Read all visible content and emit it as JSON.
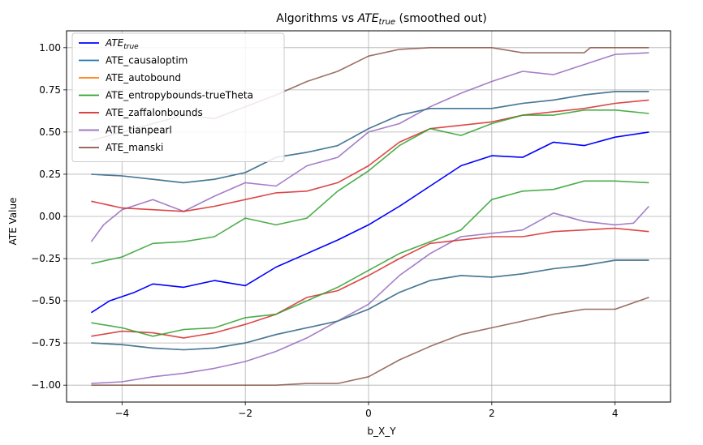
{
  "chart_data": {
    "type": "line",
    "title_main": "Algorithms vs ",
    "title_ate": "ATE",
    "title_sub": "true",
    "title_tail": " (smoothed out)",
    "xlabel": "b_X_Y",
    "ylabel": "ATE Value",
    "xlim": [
      -4.9,
      4.9
    ],
    "ylim": [
      -1.1,
      1.1
    ],
    "xticks": [
      -4,
      -2,
      0,
      2,
      4
    ],
    "xtick_labels": [
      "−4",
      "−2",
      "0",
      "2",
      "4"
    ],
    "yticks": [
      -1.0,
      -0.75,
      -0.5,
      -0.25,
      0.0,
      0.25,
      0.5,
      0.75,
      1.0
    ],
    "ytick_labels": [
      "−1.00",
      "−0.75",
      "−0.50",
      "−0.25",
      "0.00",
      "0.25",
      "0.50",
      "0.75",
      "1.00"
    ],
    "grid": true,
    "legend_position": "top-left",
    "series": [
      {
        "name": "ATE_true",
        "legend_main": "ATE",
        "legend_sub": "true",
        "color": "#0000ff",
        "width": 1.6,
        "points": [
          [
            -4.5,
            -0.57
          ],
          [
            -4.2,
            -0.5
          ],
          [
            -3.8,
            -0.45
          ],
          [
            -3.5,
            -0.4
          ],
          [
            -3.0,
            -0.42
          ],
          [
            -2.5,
            -0.38
          ],
          [
            -2.0,
            -0.41
          ],
          [
            -1.5,
            -0.3
          ],
          [
            -1.0,
            -0.22
          ],
          [
            -0.5,
            -0.14
          ],
          [
            0.0,
            -0.05
          ],
          [
            0.5,
            0.06
          ],
          [
            1.0,
            0.18
          ],
          [
            1.5,
            0.3
          ],
          [
            2.0,
            0.36
          ],
          [
            2.5,
            0.35
          ],
          [
            3.0,
            0.44
          ],
          [
            3.5,
            0.42
          ],
          [
            4.0,
            0.47
          ],
          [
            4.55,
            0.5
          ]
        ]
      },
      {
        "name": "ATE_causaloptim",
        "color": "#1f77b4",
        "width": 1.6,
        "bands": [
          [
            [
              -4.5,
              0.25
            ],
            [
              -4.0,
              0.24
            ],
            [
              -3.5,
              0.22
            ],
            [
              -3.0,
              0.2
            ],
            [
              -2.5,
              0.22
            ],
            [
              -2.0,
              0.26
            ],
            [
              -1.5,
              0.35
            ],
            [
              -1.0,
              0.38
            ],
            [
              -0.5,
              0.42
            ],
            [
              0.0,
              0.52
            ],
            [
              0.5,
              0.6
            ],
            [
              1.0,
              0.64
            ],
            [
              1.5,
              0.64
            ],
            [
              2.0,
              0.64
            ],
            [
              2.5,
              0.67
            ],
            [
              3.0,
              0.69
            ],
            [
              3.5,
              0.72
            ],
            [
              4.0,
              0.74
            ],
            [
              4.55,
              0.74
            ]
          ],
          [
            [
              -4.5,
              -0.75
            ],
            [
              -4.0,
              -0.76
            ],
            [
              -3.5,
              -0.78
            ],
            [
              -3.0,
              -0.79
            ],
            [
              -2.5,
              -0.78
            ],
            [
              -2.0,
              -0.75
            ],
            [
              -1.5,
              -0.7
            ],
            [
              -1.0,
              -0.66
            ],
            [
              -0.5,
              -0.62
            ],
            [
              0.0,
              -0.55
            ],
            [
              0.5,
              -0.45
            ],
            [
              1.0,
              -0.38
            ],
            [
              1.5,
              -0.35
            ],
            [
              2.0,
              -0.36
            ],
            [
              2.5,
              -0.34
            ],
            [
              3.0,
              -0.31
            ],
            [
              3.5,
              -0.29
            ],
            [
              4.0,
              -0.26
            ],
            [
              4.55,
              -0.26
            ]
          ]
        ]
      },
      {
        "name": "ATE_autobound",
        "color": "#ff7f0e",
        "width": 1.6,
        "bands": [
          [
            [
              -4.5,
              0.25
            ],
            [
              -4.0,
              0.24
            ],
            [
              -3.5,
              0.22
            ],
            [
              -3.0,
              0.2
            ],
            [
              -2.5,
              0.22
            ],
            [
              -2.0,
              0.26
            ],
            [
              -1.5,
              0.35
            ],
            [
              -1.0,
              0.38
            ],
            [
              -0.5,
              0.42
            ],
            [
              0.0,
              0.52
            ],
            [
              0.5,
              0.6
            ],
            [
              1.0,
              0.64
            ],
            [
              1.5,
              0.64
            ],
            [
              2.0,
              0.64
            ],
            [
              2.5,
              0.67
            ],
            [
              3.0,
              0.69
            ],
            [
              3.5,
              0.72
            ],
            [
              4.0,
              0.74
            ],
            [
              4.55,
              0.74
            ]
          ],
          [
            [
              -4.5,
              -0.75
            ],
            [
              -4.0,
              -0.76
            ],
            [
              -3.5,
              -0.78
            ],
            [
              -3.0,
              -0.79
            ],
            [
              -2.5,
              -0.78
            ],
            [
              -2.0,
              -0.75
            ],
            [
              -1.5,
              -0.7
            ],
            [
              -1.0,
              -0.66
            ],
            [
              -0.5,
              -0.62
            ],
            [
              0.0,
              -0.55
            ],
            [
              0.5,
              -0.45
            ],
            [
              1.0,
              -0.38
            ],
            [
              1.5,
              -0.35
            ],
            [
              2.0,
              -0.36
            ],
            [
              2.5,
              -0.34
            ],
            [
              3.0,
              -0.31
            ],
            [
              3.5,
              -0.29
            ],
            [
              4.0,
              -0.26
            ],
            [
              4.55,
              -0.26
            ]
          ]
        ]
      },
      {
        "name": "ATE_entropybounds-trueTheta",
        "color": "#2ca02c",
        "width": 1.6,
        "bands": [
          [
            [
              -4.5,
              -0.28
            ],
            [
              -4.0,
              -0.24
            ],
            [
              -3.5,
              -0.16
            ],
            [
              -3.0,
              -0.15
            ],
            [
              -2.5,
              -0.12
            ],
            [
              -2.0,
              -0.01
            ],
            [
              -1.5,
              -0.05
            ],
            [
              -1.0,
              -0.01
            ],
            [
              -0.5,
              0.15
            ],
            [
              0.0,
              0.27
            ],
            [
              0.5,
              0.42
            ],
            [
              1.0,
              0.52
            ],
            [
              1.5,
              0.48
            ],
            [
              2.0,
              0.55
            ],
            [
              2.5,
              0.6
            ],
            [
              3.0,
              0.6
            ],
            [
              3.5,
              0.63
            ],
            [
              4.0,
              0.63
            ],
            [
              4.55,
              0.61
            ]
          ],
          [
            [
              -4.5,
              -0.63
            ],
            [
              -4.0,
              -0.66
            ],
            [
              -3.5,
              -0.71
            ],
            [
              -3.0,
              -0.67
            ],
            [
              -2.5,
              -0.66
            ],
            [
              -2.0,
              -0.6
            ],
            [
              -1.5,
              -0.58
            ],
            [
              -1.0,
              -0.5
            ],
            [
              -0.5,
              -0.42
            ],
            [
              0.0,
              -0.32
            ],
            [
              0.5,
              -0.22
            ],
            [
              1.0,
              -0.15
            ],
            [
              1.5,
              -0.08
            ],
            [
              2.0,
              0.1
            ],
            [
              2.5,
              0.15
            ],
            [
              3.0,
              0.16
            ],
            [
              3.5,
              0.21
            ],
            [
              4.0,
              0.21
            ],
            [
              4.55,
              0.2
            ]
          ]
        ]
      },
      {
        "name": "ATE_zaffalonbounds",
        "color": "#d62728",
        "width": 1.6,
        "bands": [
          [
            [
              -4.5,
              0.09
            ],
            [
              -4.0,
              0.05
            ],
            [
              -3.5,
              0.04
            ],
            [
              -3.0,
              0.03
            ],
            [
              -2.5,
              0.06
            ],
            [
              -2.0,
              0.1
            ],
            [
              -1.5,
              0.14
            ],
            [
              -1.0,
              0.15
            ],
            [
              -0.5,
              0.2
            ],
            [
              0.0,
              0.3
            ],
            [
              0.5,
              0.44
            ],
            [
              1.0,
              0.52
            ],
            [
              1.5,
              0.54
            ],
            [
              2.0,
              0.56
            ],
            [
              2.5,
              0.6
            ],
            [
              3.0,
              0.62
            ],
            [
              3.5,
              0.64
            ],
            [
              4.0,
              0.67
            ],
            [
              4.55,
              0.69
            ]
          ],
          [
            [
              -4.5,
              -0.71
            ],
            [
              -4.0,
              -0.68
            ],
            [
              -3.5,
              -0.69
            ],
            [
              -3.0,
              -0.72
            ],
            [
              -2.5,
              -0.69
            ],
            [
              -2.0,
              -0.64
            ],
            [
              -1.5,
              -0.58
            ],
            [
              -1.0,
              -0.48
            ],
            [
              -0.5,
              -0.44
            ],
            [
              0.0,
              -0.35
            ],
            [
              0.5,
              -0.25
            ],
            [
              1.0,
              -0.16
            ],
            [
              1.5,
              -0.14
            ],
            [
              2.0,
              -0.12
            ],
            [
              2.5,
              -0.12
            ],
            [
              3.0,
              -0.09
            ],
            [
              3.5,
              -0.08
            ],
            [
              4.0,
              -0.07
            ],
            [
              4.55,
              -0.09
            ]
          ]
        ]
      },
      {
        "name": "ATE_tianpearl",
        "color": "#9467bd",
        "width": 1.6,
        "bands": [
          [
            [
              -4.5,
              -0.15
            ],
            [
              -4.3,
              -0.05
            ],
            [
              -4.0,
              0.04
            ],
            [
              -3.5,
              0.1
            ],
            [
              -3.0,
              0.03
            ],
            [
              -2.5,
              0.12
            ],
            [
              -2.0,
              0.2
            ],
            [
              -1.5,
              0.18
            ],
            [
              -1.0,
              0.3
            ],
            [
              -0.5,
              0.35
            ],
            [
              0.0,
              0.5
            ],
            [
              0.5,
              0.55
            ],
            [
              1.0,
              0.65
            ],
            [
              1.5,
              0.73
            ],
            [
              2.0,
              0.8
            ],
            [
              2.5,
              0.86
            ],
            [
              3.0,
              0.84
            ],
            [
              3.5,
              0.9
            ],
            [
              4.0,
              0.96
            ],
            [
              4.55,
              0.97
            ]
          ],
          [
            [
              -4.5,
              -0.99
            ],
            [
              -4.0,
              -0.98
            ],
            [
              -3.5,
              -0.95
            ],
            [
              -3.0,
              -0.93
            ],
            [
              -2.5,
              -0.9
            ],
            [
              -2.0,
              -0.86
            ],
            [
              -1.5,
              -0.8
            ],
            [
              -1.0,
              -0.72
            ],
            [
              -0.5,
              -0.62
            ],
            [
              0.0,
              -0.52
            ],
            [
              0.5,
              -0.35
            ],
            [
              1.0,
              -0.22
            ],
            [
              1.5,
              -0.12
            ],
            [
              2.0,
              -0.1
            ],
            [
              2.5,
              -0.08
            ],
            [
              3.0,
              0.02
            ],
            [
              3.5,
              -0.03
            ],
            [
              4.0,
              -0.05
            ],
            [
              4.3,
              -0.04
            ],
            [
              4.55,
              0.06
            ]
          ]
        ]
      },
      {
        "name": "ATE_manski",
        "color": "#8c564b",
        "width": 1.6,
        "bands": [
          [
            [
              -4.5,
              0.45
            ],
            [
              -4.0,
              0.5
            ],
            [
              -3.5,
              0.55
            ],
            [
              -3.0,
              0.6
            ],
            [
              -2.5,
              0.58
            ],
            [
              -2.0,
              0.65
            ],
            [
              -1.5,
              0.72
            ],
            [
              -1.0,
              0.8
            ],
            [
              -0.5,
              0.86
            ],
            [
              0.0,
              0.95
            ],
            [
              0.5,
              0.99
            ],
            [
              1.0,
              1.0
            ],
            [
              1.5,
              1.0
            ],
            [
              2.0,
              1.0
            ],
            [
              2.5,
              0.97
            ],
            [
              3.0,
              0.97
            ],
            [
              3.5,
              0.97
            ],
            [
              3.6,
              1.0
            ],
            [
              4.55,
              1.0
            ]
          ],
          [
            [
              -4.5,
              -1.0
            ],
            [
              -4.0,
              -1.0
            ],
            [
              -3.5,
              -1.0
            ],
            [
              -3.0,
              -1.0
            ],
            [
              -2.5,
              -1.0
            ],
            [
              -2.0,
              -1.0
            ],
            [
              -1.5,
              -1.0
            ],
            [
              -1.0,
              -0.99
            ],
            [
              -0.5,
              -0.99
            ],
            [
              0.0,
              -0.95
            ],
            [
              0.5,
              -0.85
            ],
            [
              1.0,
              -0.77
            ],
            [
              1.5,
              -0.7
            ],
            [
              2.0,
              -0.66
            ],
            [
              2.5,
              -0.62
            ],
            [
              3.0,
              -0.58
            ],
            [
              3.5,
              -0.55
            ],
            [
              4.0,
              -0.55
            ],
            [
              4.55,
              -0.48
            ]
          ]
        ]
      }
    ]
  }
}
